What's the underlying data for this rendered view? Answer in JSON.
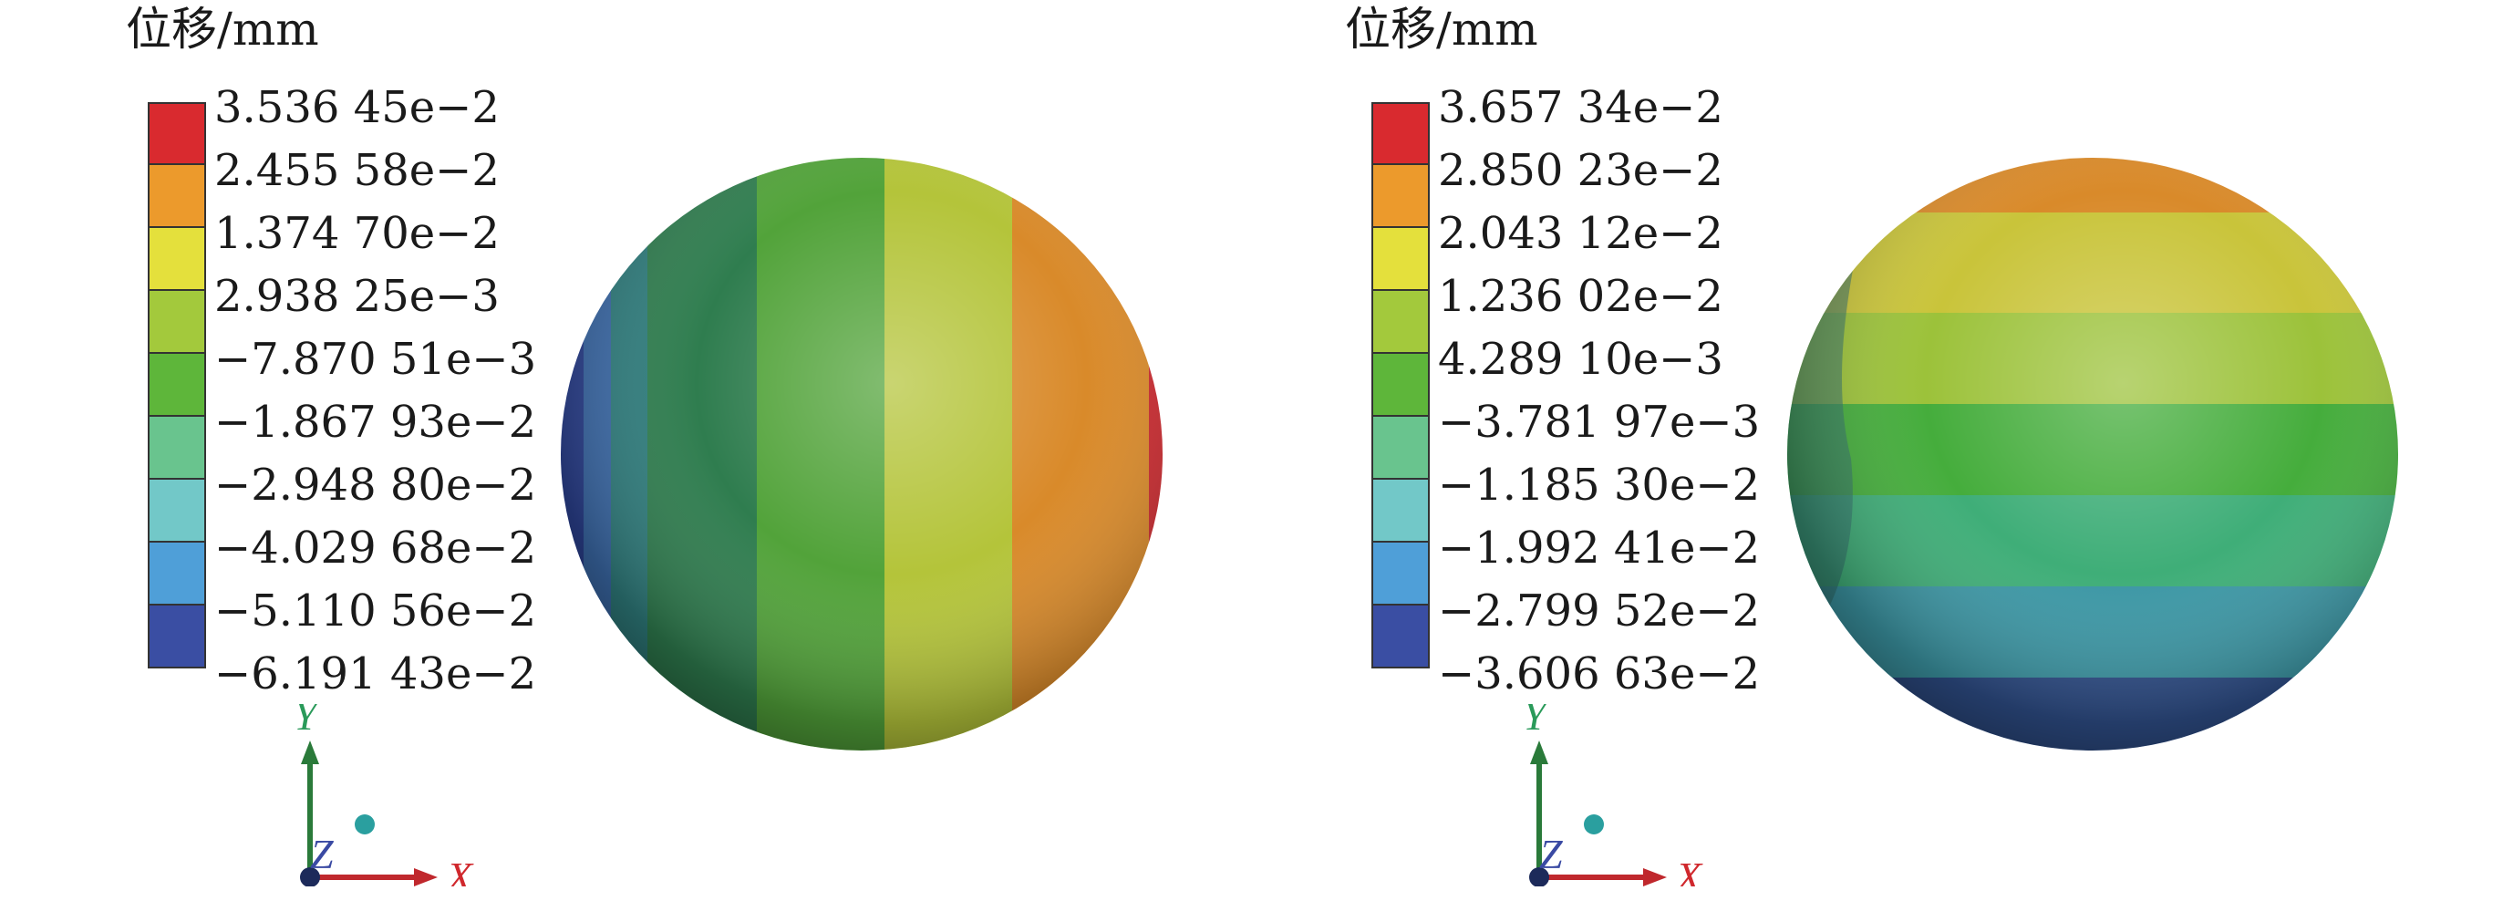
{
  "panels": [
    {
      "id": "left",
      "unit_label": "位移/mm",
      "legend_values": [
        "3.536 45e−2",
        "2.455 58e−2",
        "1.374 70e−2",
        "2.938 25e−3",
        "−7.870 51e−3",
        "−1.867 93e−2",
        "−2.948 80e−2",
        "−4.029 68e−2",
        "−5.110 56e−2",
        "−6.191 43e−2"
      ],
      "axis_labels": {
        "y": "Y",
        "z": "Z",
        "x": "X"
      }
    },
    {
      "id": "right",
      "unit_label": "位移/mm",
      "legend_values": [
        "3.657 34e−2",
        "2.850 23e−2",
        "2.043 12e−2",
        "1.236 02e−2",
        "4.289 10e−3",
        "−3.781 97e−3",
        "−1.185 30e−2",
        "−1.992 41e−2",
        "−2.799 52e−2",
        "−3.606 63e−2"
      ],
      "axis_labels": {
        "y": "Y",
        "z": "Z",
        "x": "X"
      }
    }
  ],
  "colorbar_colors": [
    "#d92a2f",
    "#ec9a2c",
    "#e4e03c",
    "#a3c93c",
    "#5eb63a",
    "#69c48e",
    "#72c8c8",
    "#4f9fd8",
    "#3a4ea3"
  ]
}
